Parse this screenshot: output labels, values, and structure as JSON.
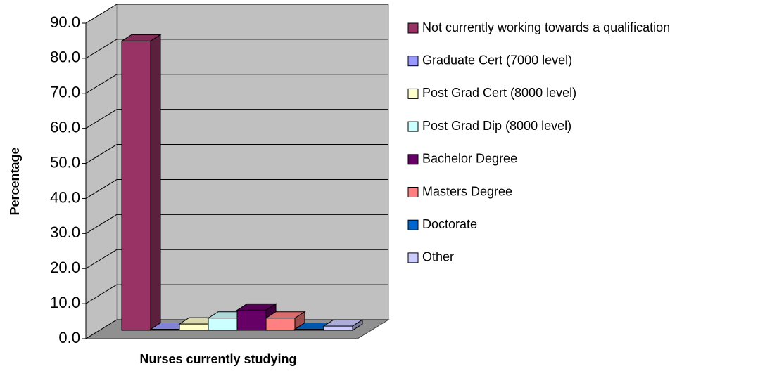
{
  "chart_data": {
    "type": "bar3d",
    "categories": [
      "Nurses currently studying"
    ],
    "y_label": "Percentage",
    "series": [
      {
        "name": "Not currently working towards a qualification",
        "color": "#993366",
        "values": [
          83.5
        ]
      },
      {
        "name": "Graduate Cert (7000 level)",
        "color": "#9999FF",
        "values": [
          0.3
        ]
      },
      {
        "name": "Post Grad Cert (8000 level)",
        "color": "#FFFFCC",
        "values": [
          1.8
        ]
      },
      {
        "name": "Post Grad Dip (8000 level)",
        "color": "#CCFFFF",
        "values": [
          3.5
        ]
      },
      {
        "name": "Bachelor Degree",
        "color": "#660066",
        "values": [
          5.8
        ]
      },
      {
        "name": "Masters Degree",
        "color": "#FF8080",
        "values": [
          3.5
        ]
      },
      {
        "name": "Doctorate",
        "color": "#0066CC",
        "values": [
          0.3
        ]
      },
      {
        "name": "Other",
        "color": "#CCCCFF",
        "values": [
          1.2
        ]
      }
    ],
    "ylim": [
      0,
      90
    ],
    "yticks": [
      {
        "value": 0,
        "label": "0.0"
      },
      {
        "value": 10,
        "label": "10.0"
      },
      {
        "value": 20,
        "label": "20.0"
      },
      {
        "value": 30,
        "label": "30.0"
      },
      {
        "value": 40,
        "label": "40.0"
      },
      {
        "value": 50,
        "label": "50.0"
      },
      {
        "value": 60,
        "label": "60.0"
      },
      {
        "value": 70,
        "label": "70.0"
      },
      {
        "value": 80,
        "label": "80.0"
      },
      {
        "value": 90,
        "label": "90.0"
      }
    ],
    "grid": true,
    "legend": "right"
  }
}
